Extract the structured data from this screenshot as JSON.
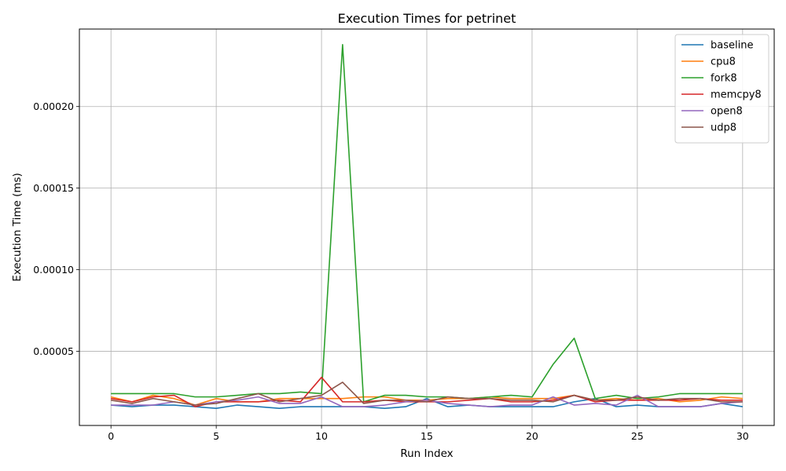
{
  "chart_data": {
    "type": "line",
    "title": "Execution Times for petrinet",
    "xlabel": "Run Index",
    "ylabel": "Execution Time (ms)",
    "xlim": [
      -1.5,
      31.5
    ],
    "ylim": [
      4.5e-06,
      0.0002475
    ],
    "xticks": [
      0,
      5,
      10,
      15,
      20,
      25,
      30
    ],
    "xtick_labels": [
      "0",
      "5",
      "10",
      "15",
      "20",
      "25",
      "30"
    ],
    "yticks": [
      5e-05,
      0.0001,
      0.00015,
      0.0002
    ],
    "ytick_labels": [
      "0.00005",
      "0.00010",
      "0.00015",
      "0.00020"
    ],
    "grid": true,
    "legend_position": "top-right",
    "x": [
      0,
      1,
      2,
      3,
      4,
      5,
      6,
      7,
      8,
      9,
      10,
      11,
      12,
      13,
      14,
      15,
      16,
      17,
      18,
      19,
      20,
      21,
      22,
      23,
      24,
      25,
      26,
      27,
      28,
      29,
      30
    ],
    "series": [
      {
        "name": "baseline",
        "color": "#1f77b4",
        "values": [
          1.7e-05,
          1.6e-05,
          1.7e-05,
          1.7e-05,
          1.6e-05,
          1.5e-05,
          1.7e-05,
          1.6e-05,
          1.5e-05,
          1.6e-05,
          1.6e-05,
          1.6e-05,
          1.6e-05,
          1.5e-05,
          1.6e-05,
          2.1e-05,
          1.6e-05,
          1.7e-05,
          1.6e-05,
          1.6e-05,
          1.6e-05,
          1.6e-05,
          1.9e-05,
          2.1e-05,
          1.6e-05,
          1.7e-05,
          1.6e-05,
          1.6e-05,
          1.6e-05,
          1.8e-05,
          1.6e-05
        ]
      },
      {
        "name": "cpu8",
        "color": "#ff7f0e",
        "values": [
          2.2e-05,
          1.9e-05,
          2.3e-05,
          2.1e-05,
          1.7e-05,
          2.1e-05,
          1.9e-05,
          1.9e-05,
          2.1e-05,
          2.1e-05,
          2.1e-05,
          2.1e-05,
          2.2e-05,
          2.2e-05,
          2e-05,
          2e-05,
          2.1e-05,
          2.1e-05,
          2.2e-05,
          2.1e-05,
          2.1e-05,
          2.1e-05,
          2.3e-05,
          2e-05,
          2.1e-05,
          2e-05,
          2.1e-05,
          1.9e-05,
          2e-05,
          2.2e-05,
          2.1e-05
        ]
      },
      {
        "name": "fork8",
        "color": "#2ca02c",
        "values": [
          2.4e-05,
          2.4e-05,
          2.4e-05,
          2.4e-05,
          2.2e-05,
          2.2e-05,
          2.3e-05,
          2.4e-05,
          2.4e-05,
          2.5e-05,
          2.4e-05,
          0.000238,
          1.9e-05,
          2.3e-05,
          2.3e-05,
          2.2e-05,
          2.2e-05,
          2.1e-05,
          2.2e-05,
          2.3e-05,
          2.2e-05,
          4.2e-05,
          5.8e-05,
          2.1e-05,
          2.3e-05,
          2.1e-05,
          2.2e-05,
          2.4e-05,
          2.4e-05,
          2.4e-05,
          2.4e-05
        ]
      },
      {
        "name": "memcpy8",
        "color": "#d62728",
        "values": [
          2.1e-05,
          1.9e-05,
          2.2e-05,
          2.3e-05,
          1.6e-05,
          1.9e-05,
          1.9e-05,
          1.9e-05,
          2e-05,
          1.9e-05,
          3.4e-05,
          1.9e-05,
          1.9e-05,
          2e-05,
          1.9e-05,
          1.9e-05,
          1.9e-05,
          2e-05,
          2.1e-05,
          1.9e-05,
          1.9e-05,
          2e-05,
          2.3e-05,
          1.9e-05,
          2e-05,
          2e-05,
          2e-05,
          2e-05,
          2.1e-05,
          2e-05,
          2e-05
        ]
      },
      {
        "name": "open8",
        "color": "#9467bd",
        "values": [
          1.7e-05,
          1.7e-05,
          1.7e-05,
          1.9e-05,
          1.7e-05,
          1.9e-05,
          2e-05,
          2.2e-05,
          1.8e-05,
          1.8e-05,
          2.2e-05,
          1.6e-05,
          1.6e-05,
          1.7e-05,
          1.9e-05,
          2e-05,
          1.8e-05,
          1.7e-05,
          1.6e-05,
          1.7e-05,
          1.7e-05,
          2.2e-05,
          1.7e-05,
          1.8e-05,
          1.7e-05,
          2.3e-05,
          1.6e-05,
          1.6e-05,
          1.6e-05,
          1.8e-05,
          1.9e-05
        ]
      },
      {
        "name": "udp8",
        "color": "#8c564b",
        "values": [
          2e-05,
          1.8e-05,
          2.1e-05,
          1.9e-05,
          1.7e-05,
          1.8e-05,
          2.1e-05,
          2.4e-05,
          1.9e-05,
          2.1e-05,
          2.3e-05,
          3.1e-05,
          1.8e-05,
          2e-05,
          2e-05,
          1.9e-05,
          2.2e-05,
          2.1e-05,
          2.1e-05,
          2e-05,
          2e-05,
          1.9e-05,
          2.3e-05,
          2e-05,
          2e-05,
          2.2e-05,
          2e-05,
          2.1e-05,
          2.1e-05,
          1.9e-05,
          1.9e-05
        ]
      }
    ]
  }
}
